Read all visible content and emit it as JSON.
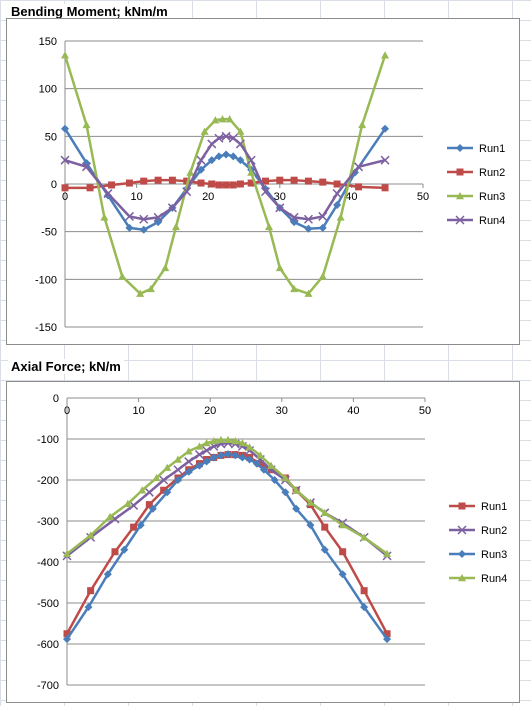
{
  "chart_data": [
    {
      "type": "line",
      "title": "Bending Moment; kNm/m",
      "xlabel": "",
      "ylabel": "",
      "xlim": [
        0,
        50
      ],
      "ylim": [
        -150,
        150
      ],
      "x_ticks": [
        0,
        10,
        20,
        30,
        40,
        50
      ],
      "y_ticks": [
        150,
        100,
        50,
        0,
        -50,
        -100,
        -150
      ],
      "grid": "horizontal",
      "legend": "right",
      "series": [
        {
          "name": "Run1",
          "color": "#4a7ebb",
          "marker": "diamond",
          "x": [
            0,
            3,
            6,
            9,
            11,
            13,
            15,
            17,
            19,
            20.5,
            21.5,
            22.5,
            23.5,
            24.5,
            26,
            28,
            30,
            32,
            34,
            36,
            38,
            40.5,
            44.7
          ],
          "y": [
            58,
            22,
            -12,
            -46,
            -48,
            -40,
            -25,
            -5,
            15,
            25,
            29,
            31,
            29,
            25,
            15,
            -5,
            -25,
            -40,
            -47,
            -46,
            -22,
            12,
            58
          ]
        },
        {
          "name": "Run2",
          "color": "#be4b48",
          "marker": "square",
          "x": [
            0,
            3.5,
            6.5,
            9,
            11,
            13,
            15,
            17,
            19,
            20.5,
            21.5,
            22.5,
            23.5,
            24.5,
            26,
            28,
            30,
            32,
            34,
            36,
            38,
            41,
            44.7
          ],
          "y": [
            -4,
            -4,
            -1,
            1,
            3,
            4,
            4,
            3,
            1,
            0,
            -1,
            -1,
            -1,
            0,
            1,
            3,
            4,
            4,
            3,
            2,
            0,
            -3,
            -4
          ]
        },
        {
          "name": "Run3",
          "color": "#98b954",
          "marker": "triangle",
          "x": [
            0,
            3,
            5.5,
            8,
            10.5,
            12,
            14,
            15.5,
            17.5,
            19.5,
            21,
            22,
            23,
            24.5,
            26,
            28.5,
            30,
            32,
            34,
            36,
            38.5,
            41.5,
            44.7
          ],
          "y": [
            135,
            62,
            -35,
            -97,
            -115,
            -110,
            -88,
            -45,
            12,
            55,
            67,
            68,
            68,
            55,
            12,
            -45,
            -88,
            -110,
            -115,
            -97,
            -35,
            62,
            135
          ]
        },
        {
          "name": "Run4",
          "color": "#7d60a0",
          "marker": "x",
          "x": [
            0,
            3,
            6,
            9,
            11,
            13,
            15,
            17,
            19,
            20.5,
            21.5,
            22.5,
            23.5,
            24.5,
            26,
            28,
            30,
            32,
            34,
            36,
            38,
            41,
            44.7
          ],
          "y": [
            25,
            18,
            -10,
            -34,
            -37,
            -35,
            -25,
            -8,
            25,
            42,
            48,
            50,
            48,
            42,
            25,
            -8,
            -25,
            -35,
            -37,
            -34,
            -10,
            18,
            25
          ]
        }
      ]
    },
    {
      "type": "line",
      "title": "Axial Force; kN/m",
      "xlabel": "",
      "ylabel": "",
      "xlim": [
        0,
        50
      ],
      "ylim": [
        -700,
        0
      ],
      "x_ticks": [
        0,
        10,
        20,
        30,
        40,
        50
      ],
      "y_ticks": [
        0,
        -100,
        -200,
        -300,
        -400,
        -500,
        -600,
        -700
      ],
      "grid": "horizontal",
      "legend": "right",
      "series": [
        {
          "name": "Run1",
          "color": "#be4b48",
          "marker": "square",
          "x": [
            0,
            3.3,
            6.7,
            9.3,
            11.5,
            13.5,
            15.5,
            17,
            18.5,
            19.5,
            20.5,
            21.5,
            22.5,
            23.5,
            24.5,
            25.5,
            27,
            28.5,
            30.5,
            32,
            34,
            36,
            38.5,
            41.5,
            44.7
          ],
          "y": [
            -575,
            -470,
            -375,
            -315,
            -260,
            -225,
            -195,
            -175,
            -160,
            -150,
            -145,
            -140,
            -138,
            -138,
            -140,
            -145,
            -160,
            -175,
            -195,
            -225,
            -260,
            -315,
            -375,
            -470,
            -575
          ]
        },
        {
          "name": "Run2",
          "color": "#7d60a0",
          "marker": "x",
          "x": [
            0,
            3.3,
            6.7,
            9.3,
            11.5,
            13.5,
            15.5,
            17,
            18.5,
            19.5,
            20.5,
            21.5,
            22.5,
            23.5,
            24.5,
            25.5,
            27,
            28.5,
            30.5,
            32,
            34,
            36,
            38.5,
            41.5,
            44.7
          ],
          "y": [
            -385,
            -340,
            -295,
            -262,
            -230,
            -200,
            -175,
            -155,
            -138,
            -128,
            -118,
            -112,
            -110,
            -112,
            -118,
            -128,
            -150,
            -175,
            -200,
            -225,
            -255,
            -280,
            -305,
            -340,
            -385
          ]
        },
        {
          "name": "Run3",
          "color": "#4a7ebb",
          "marker": "diamond",
          "x": [
            0,
            3,
            5.7,
            8,
            10.3,
            12,
            14,
            15.5,
            17,
            18.5,
            19.5,
            20.5,
            21.5,
            22.5,
            23.5,
            24.5,
            25.5,
            26.5,
            27.5,
            29,
            30.5,
            32,
            34,
            36,
            38.5,
            41.5,
            44.7
          ],
          "y": [
            -588,
            -510,
            -430,
            -370,
            -310,
            -270,
            -230,
            -200,
            -180,
            -165,
            -155,
            -145,
            -140,
            -137,
            -140,
            -145,
            -150,
            -160,
            -175,
            -200,
            -230,
            -270,
            -310,
            -370,
            -430,
            -510,
            -588
          ]
        },
        {
          "name": "Run4",
          "color": "#98b954",
          "marker": "triangle",
          "x": [
            0,
            3.3,
            6,
            8.5,
            10.5,
            12.5,
            14,
            15.5,
            17,
            18.5,
            19.5,
            20.5,
            21.5,
            22.5,
            23.5,
            24.5,
            25.5,
            27,
            28.5,
            30.5,
            32,
            34,
            36,
            38.5,
            41.5,
            44.7
          ],
          "y": [
            -380,
            -335,
            -290,
            -258,
            -225,
            -195,
            -170,
            -150,
            -130,
            -118,
            -110,
            -105,
            -102,
            -102,
            -105,
            -110,
            -120,
            -140,
            -165,
            -195,
            -225,
            -255,
            -280,
            -310,
            -340,
            -380
          ]
        }
      ]
    }
  ]
}
